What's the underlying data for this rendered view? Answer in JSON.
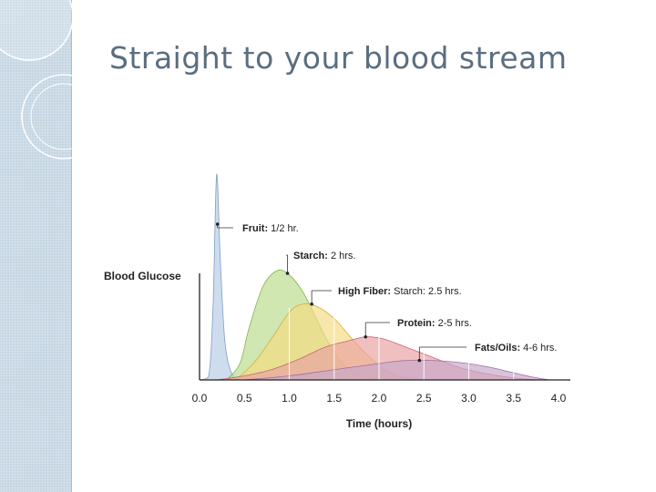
{
  "slide": {
    "title": "Straight to your blood stream"
  },
  "colors": {
    "sidebar": "#c5d6e3",
    "title": "#5b6e80"
  },
  "chart_data": {
    "type": "area",
    "title": "",
    "xlabel": "Time (hours)",
    "ylabel": "Blood Glucose",
    "xlim": [
      0,
      4
    ],
    "x_ticks": [
      "0.0",
      "0.5",
      "1.0",
      "1.5",
      "2.0",
      "2.5",
      "3.0",
      "3.5",
      "4.0"
    ],
    "grid": false,
    "series": [
      {
        "name": "Fruit",
        "annotation_bold": "Fruit:",
        "annotation_rest": " 1/2 hr.",
        "color": "#b6cde6",
        "stroke": "#7f9dc4",
        "x": [
          0.0,
          0.1,
          0.15,
          0.19,
          0.23,
          0.28,
          0.35,
          0.45
        ],
        "y": [
          0,
          1.5,
          35,
          100,
          60,
          20,
          4,
          0
        ]
      },
      {
        "name": "Starch",
        "annotation_bold": "Starch:",
        "annotation_rest": " 2 hrs.",
        "color": "#b9dc8c",
        "stroke": "#83b350",
        "x": [
          0.3,
          0.45,
          0.55,
          0.7,
          0.85,
          0.98,
          1.15,
          1.3,
          1.45,
          1.6,
          1.75,
          1.9,
          2.05
        ],
        "y": [
          0,
          8,
          25,
          45,
          53,
          52,
          43,
          30,
          17,
          8,
          3,
          1,
          0
        ]
      },
      {
        "name": "High Fiber",
        "annotation_bold": "High Fiber:",
        "annotation_rest": " Starch: 2.5 hrs.",
        "color": "#f3dc82",
        "stroke": "#d4b040",
        "x": [
          0.4,
          0.6,
          0.8,
          1.0,
          1.15,
          1.3,
          1.5,
          1.7,
          1.9,
          2.1,
          2.3,
          2.55
        ],
        "y": [
          0,
          8,
          20,
          33,
          37,
          36,
          30,
          20,
          11,
          4,
          1,
          0
        ]
      },
      {
        "name": "Protein",
        "annotation_bold": "Protein:",
        "annotation_rest": " 2-5 hrs.",
        "color": "#e9a2a2",
        "stroke": "#c96570",
        "x": [
          0.2,
          0.5,
          0.8,
          1.1,
          1.4,
          1.65,
          1.85,
          2.05,
          2.3,
          2.6,
          2.9,
          3.2,
          3.5,
          3.8
        ],
        "y": [
          0,
          2,
          5,
          10,
          16,
          19,
          21,
          20,
          16,
          11,
          6,
          3,
          1,
          0
        ]
      },
      {
        "name": "Fats/Oils",
        "annotation_bold": "Fats/Oils:",
        "annotation_rest": " 4-6 hrs.",
        "color": "#c7a7c9",
        "stroke": "#9b6fa0",
        "x": [
          0.5,
          1.0,
          1.5,
          2.0,
          2.3,
          2.6,
          2.9,
          3.2,
          3.45,
          3.7,
          3.9
        ],
        "y": [
          0,
          2,
          5,
          8,
          9.5,
          9.5,
          8.5,
          6.5,
          4,
          1.5,
          0
        ]
      }
    ]
  }
}
